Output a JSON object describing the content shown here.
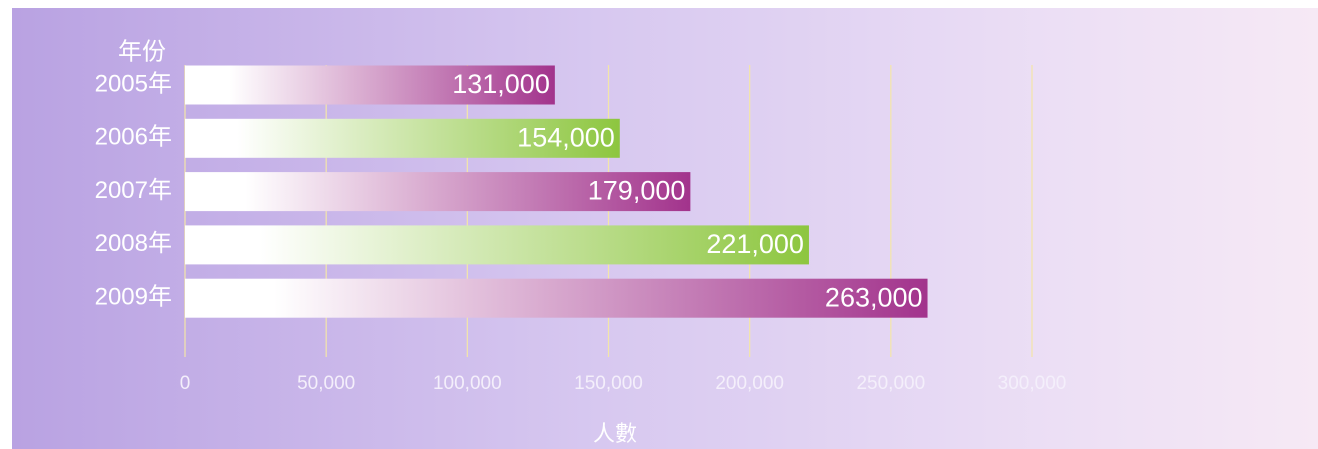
{
  "chart_data": {
    "type": "barh",
    "y_label": "年份",
    "x_label": "人數",
    "categories": [
      "2005年",
      "2006年",
      "2007年",
      "2008年",
      "2009年"
    ],
    "values": [
      131000,
      154000,
      179000,
      221000,
      263000
    ],
    "value_labels": [
      "131,000",
      "154,000",
      "179,000",
      "221,000",
      "263,000"
    ],
    "colors": [
      "#a2338c",
      "#8dc63f",
      "#a2338c",
      "#8dc63f",
      "#a2338c"
    ],
    "xlim": [
      0,
      300000
    ],
    "xticks": [
      0,
      {
        "value": 50000,
        "label": "50,000"
      },
      {
        "value": 100000,
        "label": "100,000"
      },
      {
        "value": 150000,
        "label": "150,000"
      },
      {
        "value": 200000,
        "label": "200,000"
      },
      {
        "value": 250000,
        "label": "250,000"
      },
      {
        "value": 300000,
        "label": "300,000"
      }
    ],
    "grid": true
  }
}
